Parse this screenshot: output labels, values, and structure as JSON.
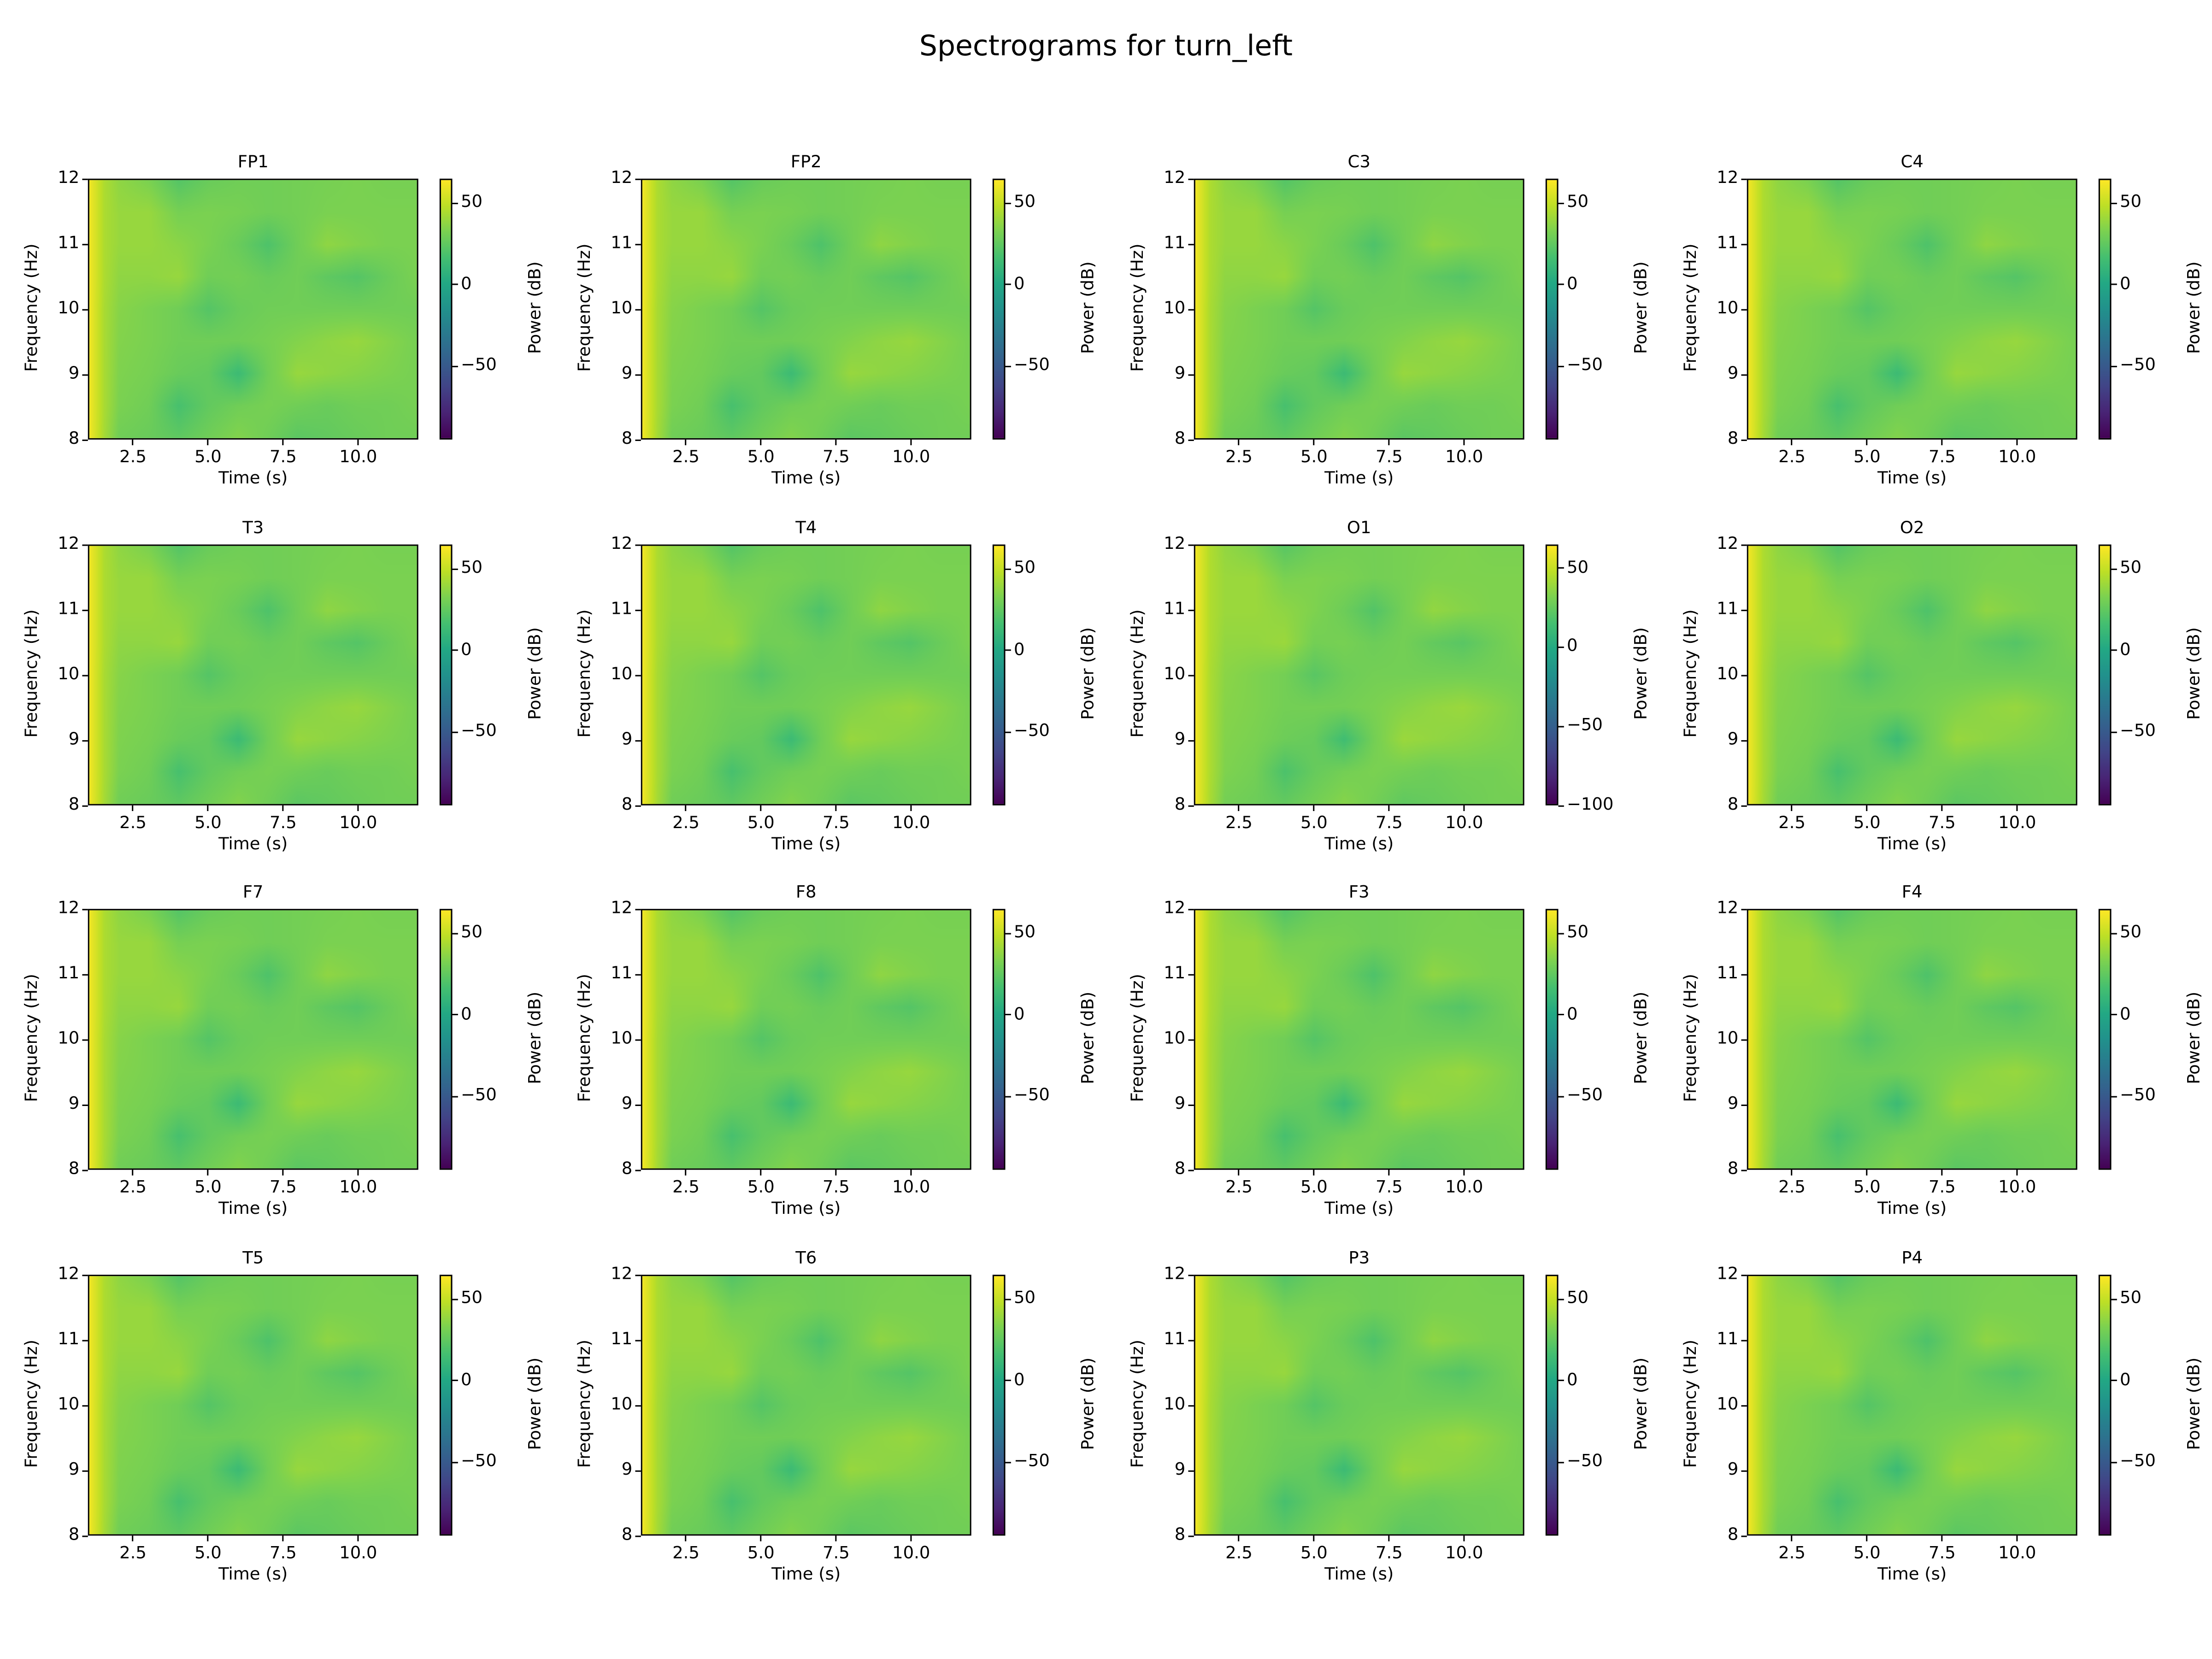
{
  "chart_data": {
    "type": "heatmap",
    "title": "Spectrograms for turn_left",
    "xlabel": "Time (s)",
    "ylabel": "Frequency (Hz)",
    "colorbar_label": "Power (dB)",
    "colormap": "viridis",
    "xlim": [
      1,
      12
    ],
    "ylim": [
      8,
      12
    ],
    "xticks": [
      "2.5",
      "5.0",
      "7.5",
      "10.0"
    ],
    "yticks": [
      "8",
      "9",
      "10",
      "11",
      "12"
    ],
    "grid": false,
    "layout": "4x4",
    "channels": [
      {
        "name": "FP1",
        "clim": [
          -95,
          65
        ],
        "cbar_ticks": [
          "50",
          "0",
          "−50"
        ]
      },
      {
        "name": "FP2",
        "clim": [
          -95,
          65
        ],
        "cbar_ticks": [
          "50",
          "0",
          "−50"
        ]
      },
      {
        "name": "C3",
        "clim": [
          -95,
          65
        ],
        "cbar_ticks": [
          "50",
          "0",
          "−50"
        ]
      },
      {
        "name": "C4",
        "clim": [
          -95,
          65
        ],
        "cbar_ticks": [
          "50",
          "0",
          "−50"
        ]
      },
      {
        "name": "T3",
        "clim": [
          -95,
          65
        ],
        "cbar_ticks": [
          "50",
          "0",
          "−50"
        ]
      },
      {
        "name": "T4",
        "clim": [
          -95,
          65
        ],
        "cbar_ticks": [
          "50",
          "0",
          "−50"
        ]
      },
      {
        "name": "O1",
        "clim": [
          -100,
          65
        ],
        "cbar_ticks": [
          "50",
          "0",
          "−50",
          "−100"
        ]
      },
      {
        "name": "O2",
        "clim": [
          -95,
          65
        ],
        "cbar_ticks": [
          "50",
          "0",
          "−50"
        ]
      },
      {
        "name": "F7",
        "clim": [
          -95,
          65
        ],
        "cbar_ticks": [
          "50",
          "0",
          "−50"
        ]
      },
      {
        "name": "F8",
        "clim": [
          -95,
          65
        ],
        "cbar_ticks": [
          "50",
          "0",
          "−50"
        ]
      },
      {
        "name": "F3",
        "clim": [
          -95,
          65
        ],
        "cbar_ticks": [
          "50",
          "0",
          "−50"
        ]
      },
      {
        "name": "F4",
        "clim": [
          -95,
          65
        ],
        "cbar_ticks": [
          "50",
          "0",
          "−50"
        ]
      },
      {
        "name": "T5",
        "clim": [
          -95,
          65
        ],
        "cbar_ticks": [
          "50",
          "0",
          "−50"
        ]
      },
      {
        "name": "T6",
        "clim": [
          -95,
          65
        ],
        "cbar_ticks": [
          "50",
          "0",
          "−50"
        ]
      },
      {
        "name": "P3",
        "clim": [
          -95,
          65
        ],
        "cbar_ticks": [
          "50",
          "0",
          "−50"
        ]
      },
      {
        "name": "P4",
        "clim": [
          -95,
          65
        ],
        "cbar_ticks": [
          "50",
          "0",
          "−50"
        ]
      }
    ],
    "times": [
      1,
      1.5,
      2,
      3,
      4,
      5,
      6,
      7,
      8,
      9,
      10,
      11,
      12
    ],
    "freqs": [
      12,
      11.5,
      11,
      10.5,
      10,
      9.5,
      9,
      8.5,
      8
    ],
    "power_db_approx": [
      [
        62,
        45,
        38,
        33,
        22,
        28,
        30,
        30,
        31,
        32,
        33,
        32,
        32
      ],
      [
        62,
        45,
        40,
        40,
        32,
        33,
        32,
        30,
        31,
        33,
        33,
        33,
        33
      ],
      [
        62,
        45,
        40,
        40,
        37,
        33,
        28,
        20,
        30,
        38,
        35,
        33,
        33
      ],
      [
        62,
        45,
        38,
        38,
        40,
        30,
        31,
        28,
        30,
        25,
        22,
        28,
        33
      ],
      [
        62,
        44,
        36,
        33,
        30,
        22,
        28,
        30,
        30,
        30,
        30,
        30,
        30
      ],
      [
        62,
        44,
        35,
        33,
        30,
        30,
        30,
        32,
        35,
        38,
        40,
        36,
        32
      ],
      [
        62,
        44,
        34,
        32,
        28,
        26,
        14,
        30,
        40,
        38,
        36,
        34,
        32
      ],
      [
        62,
        44,
        33,
        30,
        18,
        26,
        30,
        32,
        30,
        28,
        30,
        30,
        32
      ],
      [
        62,
        43,
        30,
        28,
        25,
        30,
        35,
        30,
        24,
        26,
        28,
        30,
        30
      ]
    ]
  }
}
